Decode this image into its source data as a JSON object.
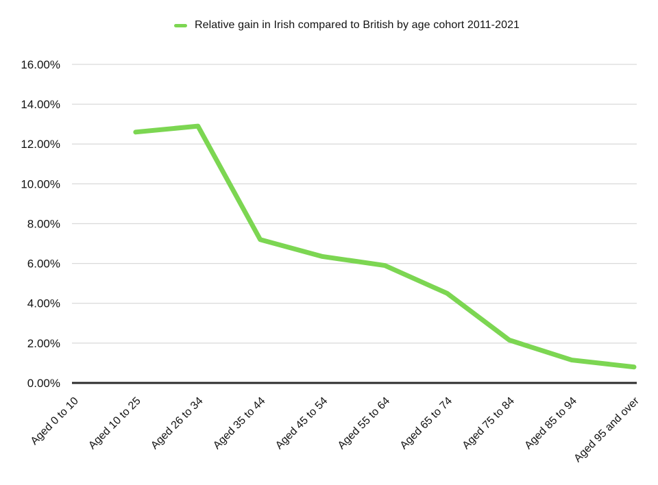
{
  "chart_data": {
    "type": "line",
    "title": "Relative gain in Irish compared to British by age cohort 2011-2021",
    "categories": [
      "Aged 0 to 10",
      "Aged 10 to 25",
      "Aged 26 to 34",
      "Aged 35 to 44",
      "Aged 45 to 54",
      "Aged 55 to 64",
      "Aged 65 to 74",
      "Aged 75 to 84",
      "Aged 85 to 94",
      "Aged 95 and over"
    ],
    "values": [
      null,
      12.6,
      12.9,
      7.2,
      6.35,
      5.9,
      4.5,
      2.15,
      1.15,
      0.8
    ],
    "value_unit": "%",
    "xlabel": "",
    "ylabel": "",
    "ylim": [
      0,
      16
    ],
    "ytick_step": 2,
    "ytick_labels": [
      "0.00%",
      "2.00%",
      "4.00%",
      "6.00%",
      "8.00%",
      "10.00%",
      "12.00%",
      "14.00%",
      "16.00%"
    ],
    "grid": true,
    "legend_position": "top",
    "line_color": "#7CD652",
    "grid_color": "#D9D9D9",
    "axis_color": "#2B2B2B",
    "text_color": "#111111",
    "background": "#FFFFFF"
  }
}
